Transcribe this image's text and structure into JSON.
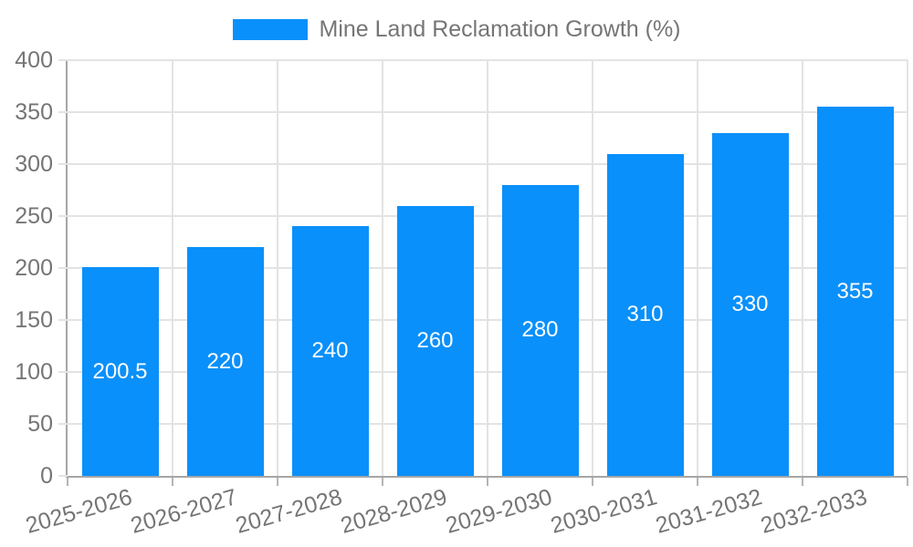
{
  "legend": {
    "items": [
      {
        "label": "Mine Land Reclamation Growth (%)",
        "color": "#0a90fa"
      }
    ]
  },
  "chart_data": {
    "type": "bar",
    "title": "",
    "categories": [
      "2025-2026",
      "2026-2027",
      "2027-2028",
      "2028-2029",
      "2029-2030",
      "2030-2031",
      "2031-2032",
      "2032-2033"
    ],
    "series": [
      {
        "name": "Mine Land Reclamation Growth (%)",
        "values": [
          200.5,
          220,
          240,
          260,
          280,
          310,
          330,
          355
        ]
      }
    ],
    "value_labels": [
      "200.5",
      "220",
      "240",
      "260",
      "280",
      "310",
      "330",
      "355"
    ],
    "xlabel": "",
    "ylabel": "",
    "ylim": [
      0,
      400
    ],
    "yticks": [
      0,
      50,
      100,
      150,
      200,
      250,
      300,
      350,
      400
    ],
    "grid": true,
    "legend_position": "top",
    "x_label_rotation_deg": -16,
    "colors": {
      "bar": "#0a90fa",
      "bar_label": "#ffffff",
      "axis": "#a6a6a6",
      "gridline": "#e3e3e3",
      "x_tick": "#b5b5b5",
      "tick_label": "#757575",
      "legend_text": "#757575",
      "background": "#ffffff"
    }
  }
}
